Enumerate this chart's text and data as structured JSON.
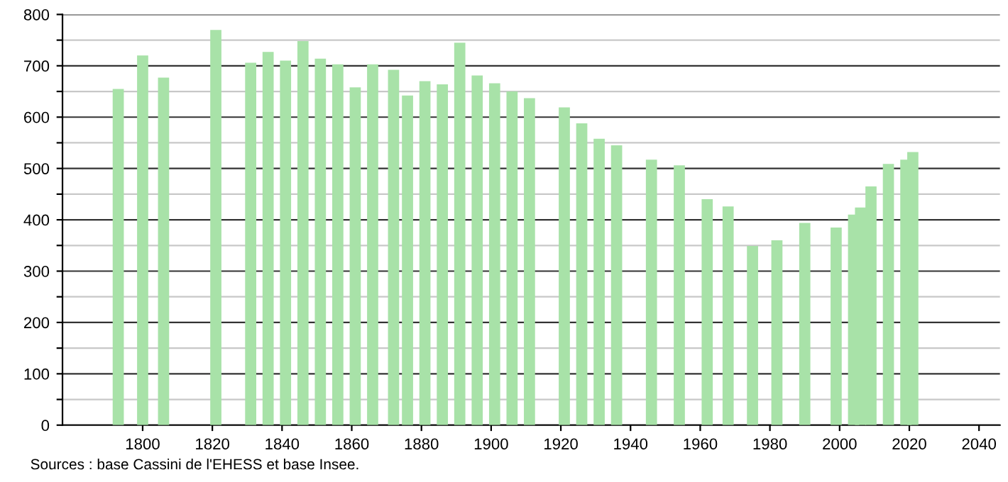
{
  "chart_data": {
    "type": "bar",
    "x": [
      1793,
      1800,
      1806,
      1821,
      1831,
      1836,
      1841,
      1846,
      1851,
      1856,
      1861,
      1866,
      1872,
      1876,
      1881,
      1886,
      1891,
      1896,
      1901,
      1906,
      1911,
      1921,
      1926,
      1931,
      1936,
      1946,
      1954,
      1962,
      1968,
      1975,
      1982,
      1990,
      1999,
      2004,
      2006,
      2009,
      2014,
      2019,
      2021
    ],
    "values": [
      655,
      720,
      677,
      770,
      706,
      727,
      710,
      748,
      714,
      703,
      658,
      703,
      692,
      642,
      670,
      664,
      745,
      681,
      666,
      650,
      637,
      619,
      588,
      558,
      545,
      517,
      506,
      440,
      426,
      349,
      360,
      394,
      385,
      410,
      424,
      465,
      509,
      517,
      532
    ],
    "color": "#a8e2a8",
    "xlim": [
      1777,
      2046
    ],
    "xticks": [
      1800,
      1820,
      1840,
      1860,
      1880,
      1900,
      1920,
      1940,
      1960,
      1980,
      2000,
      2020,
      2040
    ],
    "ylim": [
      0,
      800
    ],
    "yticks": [
      0,
      {
        "value": 50,
        "label": null
      },
      100,
      {
        "value": 150,
        "label": null
      },
      200,
      {
        "value": 250,
        "label": null
      },
      300,
      {
        "value": 350,
        "label": null
      },
      400,
      {
        "value": 450,
        "label": null
      },
      500,
      {
        "value": 550,
        "label": null
      },
      600,
      {
        "value": 650,
        "label": null
      },
      700,
      {
        "value": 750,
        "label": null
      },
      800
    ],
    "grid": "y",
    "annotations": [
      "Sources : base Cassini de l'EHESS et base Insee."
    ]
  }
}
